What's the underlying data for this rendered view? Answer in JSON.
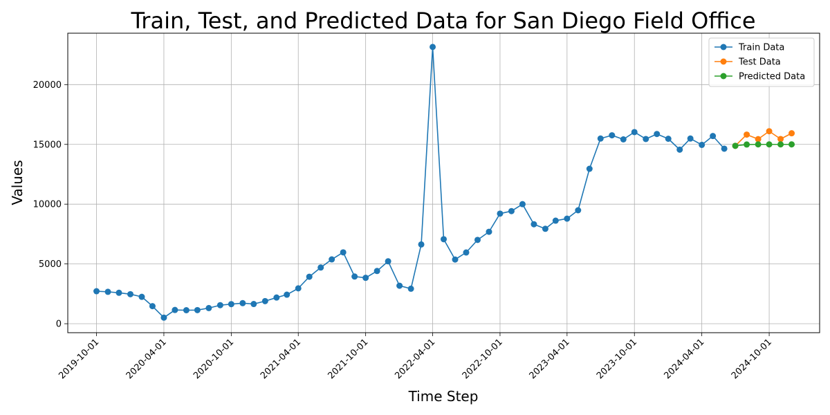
{
  "chart_data": {
    "type": "line",
    "title": "Train, Test, and Predicted Data for San Diego Field Office",
    "xlabel": "Time Step",
    "ylabel": "Values",
    "x_ticks": [
      "2019-10-01",
      "2020-04-01",
      "2020-10-01",
      "2021-04-01",
      "2021-10-01",
      "2022-04-01",
      "2022-10-01",
      "2023-04-01",
      "2023-10-01",
      "2024-04-01",
      "2024-10-01"
    ],
    "y_ticks": [
      0,
      5000,
      10000,
      15000,
      20000
    ],
    "xlim": [
      "2019-07-15",
      "2025-02-15"
    ],
    "ylim": [
      -750,
      24300
    ],
    "grid": true,
    "legend_position": "top-right",
    "series": [
      {
        "name": "Train Data",
        "color": "#1f77b4",
        "x": [
          "2019-10-01",
          "2019-11-01",
          "2019-12-01",
          "2020-01-01",
          "2020-02-01",
          "2020-03-01",
          "2020-04-01",
          "2020-05-01",
          "2020-06-01",
          "2020-07-01",
          "2020-08-01",
          "2020-09-01",
          "2020-10-01",
          "2020-11-01",
          "2020-12-01",
          "2021-01-01",
          "2021-02-01",
          "2021-03-01",
          "2021-04-01",
          "2021-05-01",
          "2021-06-01",
          "2021-07-01",
          "2021-08-01",
          "2021-09-01",
          "2021-10-01",
          "2021-11-01",
          "2021-12-01",
          "2022-01-01",
          "2022-02-01",
          "2022-03-01",
          "2022-04-01",
          "2022-05-01",
          "2022-06-01",
          "2022-07-01",
          "2022-08-01",
          "2022-09-01",
          "2022-10-01",
          "2022-11-01",
          "2022-12-01",
          "2023-01-01",
          "2023-02-01",
          "2023-03-01",
          "2023-04-01",
          "2023-05-01",
          "2023-06-01",
          "2023-07-01",
          "2023-08-01",
          "2023-09-01",
          "2023-10-01",
          "2023-11-01",
          "2023-12-01",
          "2024-01-01",
          "2024-02-01",
          "2024-03-01",
          "2024-04-01",
          "2024-05-01",
          "2024-06-01"
        ],
        "values": [
          2720,
          2670,
          2590,
          2470,
          2250,
          1470,
          510,
          1150,
          1130,
          1140,
          1310,
          1550,
          1640,
          1720,
          1650,
          1890,
          2190,
          2430,
          2960,
          3930,
          4700,
          5380,
          5970,
          3950,
          3840,
          4410,
          5220,
          3180,
          2930,
          6630,
          23150,
          7070,
          5370,
          5960,
          7010,
          7690,
          9210,
          9420,
          10000,
          8320,
          7940,
          8620,
          8790,
          9490,
          12960,
          15490,
          15760,
          15420,
          16030,
          15450,
          15870,
          15470,
          14560,
          15490,
          14960,
          15700,
          14640
        ]
      },
      {
        "name": "Test Data",
        "color": "#ff7f0e",
        "x": [
          "2024-07-01",
          "2024-08-01",
          "2024-09-01",
          "2024-10-01",
          "2024-11-01",
          "2024-12-01"
        ],
        "values": [
          14880,
          15820,
          15440,
          16100,
          15450,
          15930
        ]
      },
      {
        "name": "Predicted Data",
        "color": "#2ca02c",
        "x": [
          "2024-07-01",
          "2024-08-01",
          "2024-09-01",
          "2024-10-01",
          "2024-11-01",
          "2024-12-01"
        ],
        "values": [
          14880,
          14990,
          15000,
          15000,
          15000,
          15000
        ]
      }
    ]
  }
}
